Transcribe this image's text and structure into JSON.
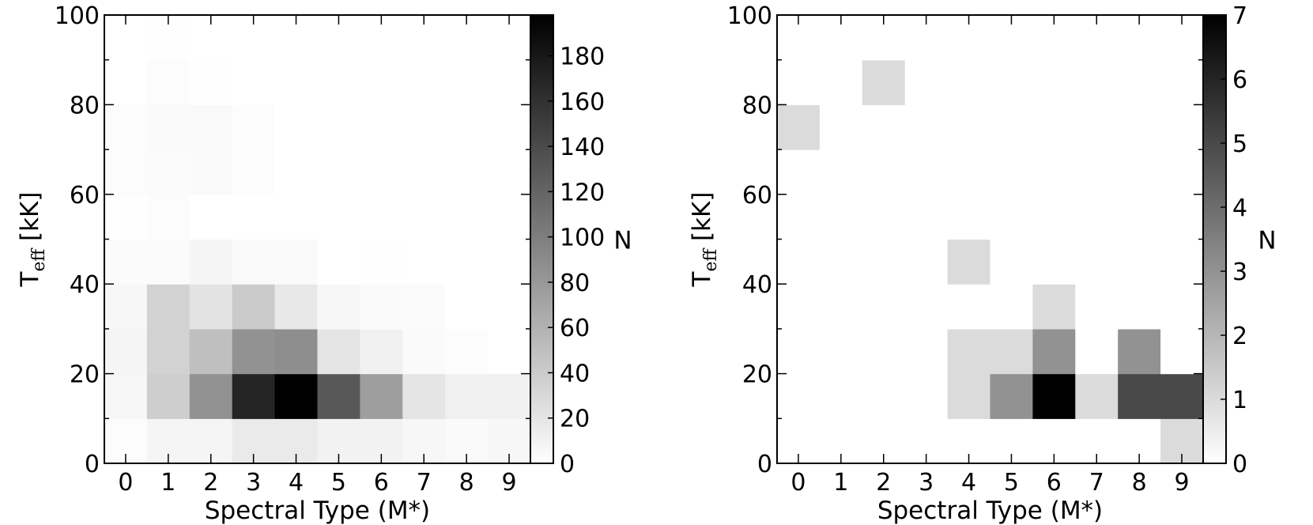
{
  "chart_data": [
    {
      "type": "heatmap",
      "xlabel": "Spectral Type (M*)",
      "ylabel_main": "T",
      "ylabel_sub": "eff",
      "ylabel_unit": " [kK]",
      "x_categories": [
        "0",
        "1",
        "2",
        "3",
        "4",
        "5",
        "6",
        "7",
        "8",
        "9"
      ],
      "y_bins": [
        0,
        10,
        20,
        30,
        40,
        50,
        60,
        70,
        80,
        90,
        100
      ],
      "ylim": [
        0,
        100
      ],
      "y_ticks": [
        "0",
        "20",
        "40",
        "60",
        "80",
        "100"
      ],
      "colorbar": {
        "label": "N",
        "vmin": 0,
        "vmax": 198,
        "ticks": [
          "0",
          "20",
          "40",
          "60",
          "80",
          "100",
          "120",
          "140",
          "160",
          "180"
        ],
        "tick_values": [
          0,
          20,
          40,
          60,
          80,
          100,
          120,
          140,
          160,
          180
        ],
        "colormap": "gray_r"
      },
      "counts": [
        [
          2,
          8,
          8,
          16,
          16,
          10,
          10,
          6,
          4,
          6
        ],
        [
          6,
          38,
          85,
          170,
          198,
          130,
          75,
          20,
          12,
          12
        ],
        [
          8,
          35,
          50,
          85,
          88,
          20,
          12,
          4,
          2,
          0
        ],
        [
          6,
          35,
          22,
          40,
          18,
          6,
          4,
          3,
          0,
          0
        ],
        [
          3,
          3,
          8,
          5,
          4,
          0,
          1,
          0,
          0,
          0
        ],
        [
          1,
          2,
          0,
          0,
          0,
          0,
          0,
          0,
          0,
          0
        ],
        [
          2,
          3,
          4,
          2,
          0,
          0,
          0,
          0,
          0,
          0
        ],
        [
          2,
          4,
          5,
          2,
          0,
          0,
          0,
          0,
          0,
          0
        ],
        [
          0,
          2,
          1,
          0,
          0,
          0,
          0,
          0,
          0,
          0
        ],
        [
          0,
          1,
          0,
          0,
          0,
          0,
          0,
          0,
          0,
          0
        ]
      ]
    },
    {
      "type": "heatmap",
      "xlabel": "Spectral Type (M*)",
      "ylabel_main": "T",
      "ylabel_sub": "eff",
      "ylabel_unit": " [kK]",
      "x_categories": [
        "0",
        "1",
        "2",
        "3",
        "4",
        "5",
        "6",
        "7",
        "8",
        "9"
      ],
      "y_bins": [
        0,
        10,
        20,
        30,
        40,
        50,
        60,
        70,
        80,
        90,
        100
      ],
      "ylim": [
        0,
        100
      ],
      "y_ticks": [
        "0",
        "20",
        "40",
        "60",
        "80",
        "100"
      ],
      "colorbar": {
        "label": "N",
        "vmin": 0,
        "vmax": 7,
        "ticks": [
          "0",
          "1",
          "2",
          "3",
          "4",
          "5",
          "6",
          "7"
        ],
        "tick_values": [
          0,
          1,
          2,
          3,
          4,
          5,
          6,
          7
        ],
        "colormap": "gray_r"
      },
      "counts": [
        [
          0,
          0,
          0,
          0,
          0,
          0,
          0,
          0,
          0,
          1
        ],
        [
          0,
          0,
          0,
          0,
          1,
          3,
          7,
          1,
          5,
          5
        ],
        [
          0,
          0,
          0,
          0,
          1,
          1,
          3,
          0,
          3,
          0
        ],
        [
          0,
          0,
          0,
          0,
          0,
          0,
          1,
          0,
          0,
          0
        ],
        [
          0,
          0,
          0,
          0,
          1,
          0,
          0,
          0,
          0,
          0
        ],
        [
          0,
          0,
          0,
          0,
          0,
          0,
          0,
          0,
          0,
          0
        ],
        [
          0,
          0,
          0,
          0,
          0,
          0,
          0,
          0,
          0,
          0
        ],
        [
          1,
          0,
          0,
          0,
          0,
          0,
          0,
          0,
          0,
          0
        ],
        [
          0,
          0,
          1,
          0,
          0,
          0,
          0,
          0,
          0,
          0
        ],
        [
          0,
          0,
          0,
          0,
          0,
          0,
          0,
          0,
          0,
          0
        ]
      ]
    }
  ]
}
